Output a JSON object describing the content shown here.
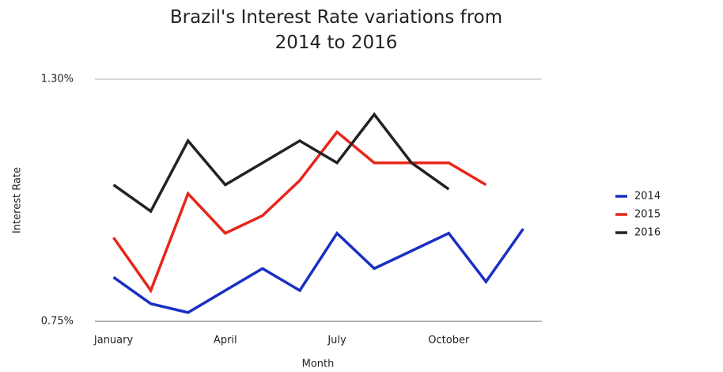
{
  "chart_data": {
    "type": "line",
    "title": "Brazil's Interest Rate variations from 2014 to 2016",
    "xlabel": "Month",
    "ylabel": "Interest Rate",
    "categories": [
      "January",
      null,
      null,
      "April",
      null,
      null,
      "July",
      null,
      null,
      "October",
      null,
      null
    ],
    "series": [
      {
        "name": "2014",
        "color": "#1a2fc4",
        "values": [
          0.85,
          0.79,
          0.77,
          0.82,
          0.87,
          0.82,
          0.95,
          0.87,
          0.91,
          0.95,
          0.84,
          0.96
        ]
      },
      {
        "name": "2015",
        "color": "#e8261a",
        "values": [
          0.94,
          0.82,
          1.04,
          0.95,
          0.99,
          1.07,
          1.18,
          1.11,
          1.11,
          1.11,
          1.06,
          null
        ]
      },
      {
        "name": "2016",
        "color": "#222222",
        "values": [
          1.06,
          1.0,
          1.16,
          1.06,
          1.11,
          1.16,
          1.11,
          1.22,
          1.11,
          1.05,
          null,
          null
        ]
      }
    ],
    "ylim": [
      0.75,
      1.3
    ],
    "yticks": [
      {
        "value": 0.75,
        "label": "0.75%"
      },
      {
        "value": 1.3,
        "label": "1.30%"
      }
    ],
    "grid": true,
    "legend": "right"
  }
}
